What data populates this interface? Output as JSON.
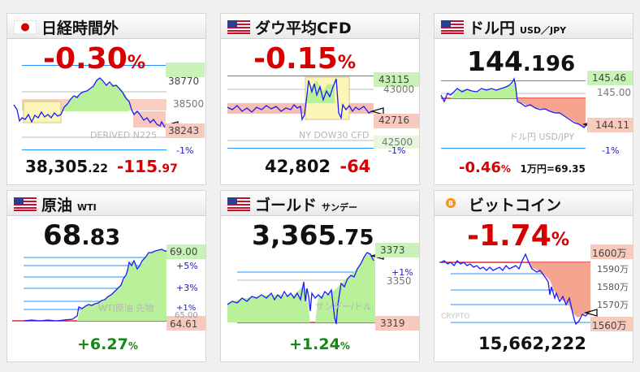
{
  "tiles": {
    "nikkei": {
      "title": "日経時間外",
      "icon": "japan-flag-icon",
      "change_pct": "-0.30",
      "pct_sign": "%",
      "levels": [
        "38770",
        "38500",
        "38243",
        "-1%"
      ],
      "watermark": "DERIVED N225",
      "price_int": "38,305",
      "price_dec": ".22",
      "change_int": "-115",
      "change_dec": ".97"
    },
    "dow": {
      "title": "ダウ平均CFD",
      "icon": "us-flag-icon",
      "change_pct": "-0.15",
      "pct_sign": "%",
      "levels": [
        "43115",
        "43000",
        "42716",
        "42500",
        "-1%"
      ],
      "watermark": "NY DOW30 CFD",
      "price": "42,802",
      "change": "-64"
    },
    "usdjpy": {
      "title": "ドル円",
      "subtitle": "USD／JPY",
      "icon": "us-flag-icon",
      "price_int": "144",
      "price_dec": ".196",
      "levels": [
        "145.46",
        "145.00",
        "144.11",
        "-1%"
      ],
      "watermark": "ドル円 USD/JPY",
      "change_pct": "-0.46",
      "pct_sign": "%",
      "unit_label": "1万円=69.35"
    },
    "wti": {
      "title": "原油",
      "subtitle": "WTI",
      "icon": "us-flag-icon",
      "price_int": "68",
      "price_dec": ".83",
      "levels": [
        "69.00",
        "+5%",
        "+3%",
        "+1%",
        "65.00",
        "64.61"
      ],
      "watermark": "WTI原油 先物",
      "change_pct": "+6.27",
      "pct_sign": "%"
    },
    "gold": {
      "title": "ゴールド",
      "subtitle": "サンデー",
      "icon": "us-flag-icon",
      "price_int": "3,365",
      "price_dec": ".75",
      "levels": [
        "3373",
        "+1%",
        "3350",
        "3319"
      ],
      "watermark": "サンデー/ドル",
      "change_pct": "+1.24",
      "pct_sign": "%"
    },
    "bitcoin": {
      "title": "ビットコイン",
      "icon": "bitcoin-icon",
      "change_pct": "-1.74",
      "pct_sign": "%",
      "levels": [
        "1600万",
        "1590万",
        "1580万",
        "1570万",
        "1560万"
      ],
      "watermark": "CRYPTO",
      "price": "15,662,222"
    }
  },
  "colors": {
    "down": "#d60000",
    "up": "#118a11",
    "line": "#1a1aff",
    "up_fill": "#b9f19a",
    "down_fill": "#f4a48f"
  }
}
